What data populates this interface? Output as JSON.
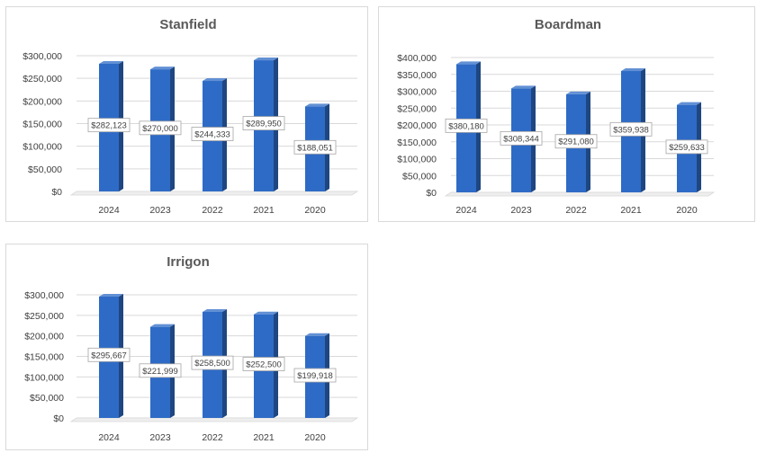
{
  "chart_data": [
    {
      "type": "bar",
      "title": "Stanfield",
      "categories": [
        "2024",
        "2023",
        "2022",
        "2021",
        "2020"
      ],
      "values": [
        282123,
        270000,
        244333,
        289950,
        188051
      ],
      "value_labels": [
        "$282,123",
        "$270,000",
        "$244,333",
        "$289,950",
        "$188,051"
      ],
      "ylim": [
        0,
        300000
      ],
      "yticks": [
        "$0",
        "$50,000",
        "$100,000",
        "$150,000",
        "$200,000",
        "$250,000",
        "$300,000"
      ],
      "xlabel": "",
      "ylabel": "",
      "grid": true,
      "color": "#2e6bc6"
    },
    {
      "type": "bar",
      "title": "Boardman",
      "categories": [
        "2024",
        "2023",
        "2022",
        "2021",
        "2020"
      ],
      "values": [
        380180,
        308344,
        291080,
        359938,
        259633
      ],
      "value_labels": [
        "$380,180",
        "$308,344",
        "$291,080",
        "$359,938",
        "$259,633"
      ],
      "ylim": [
        0,
        400000
      ],
      "yticks": [
        "$0",
        "$50,000",
        "$100,000",
        "$150,000",
        "$200,000",
        "$250,000",
        "$300,000",
        "$350,000",
        "$400,000"
      ],
      "xlabel": "",
      "ylabel": "",
      "grid": true,
      "color": "#2e6bc6"
    },
    {
      "type": "bar",
      "title": "Irrigon",
      "categories": [
        "2024",
        "2023",
        "2022",
        "2021",
        "2020"
      ],
      "values": [
        295667,
        221999,
        258500,
        252500,
        199918
      ],
      "value_labels": [
        "$295,667",
        "$221,999",
        "$258,500",
        "$252,500",
        "$199,918"
      ],
      "ylim": [
        0,
        300000
      ],
      "yticks": [
        "$0",
        "$50,000",
        "$100,000",
        "$150,000",
        "$200,000",
        "$250,000",
        "$300,000"
      ],
      "xlabel": "",
      "ylabel": "",
      "grid": true,
      "color": "#2e6bc6"
    }
  ]
}
